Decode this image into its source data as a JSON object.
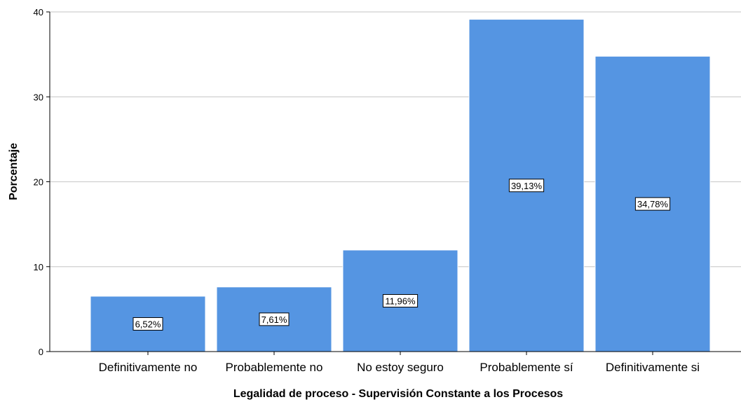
{
  "chart_data": {
    "type": "bar",
    "categories": [
      "Definitivamente no",
      "Probablemente no",
      "No estoy seguro",
      "Probablemente sí",
      "Definitivamente si"
    ],
    "values": [
      6.52,
      7.61,
      11.96,
      39.13,
      34.78
    ],
    "data_labels": [
      "6,52%",
      "7,61%",
      "11,96%",
      "39,13%",
      "34,78%"
    ],
    "title": "",
    "xlabel": "Legalidad de proceso - Supervisión Constante a los Procesos",
    "ylabel": "Porcentaje",
    "ylim": [
      0,
      40
    ],
    "yticks": [
      0,
      10,
      20,
      30,
      40
    ],
    "ytick_labels": [
      "0",
      "10",
      "20",
      "30",
      "40"
    ],
    "grid": true,
    "bar_color": "#5595e2",
    "bar_edge_color": "#ffffff",
    "gridline_color": "#cfcfcf"
  }
}
